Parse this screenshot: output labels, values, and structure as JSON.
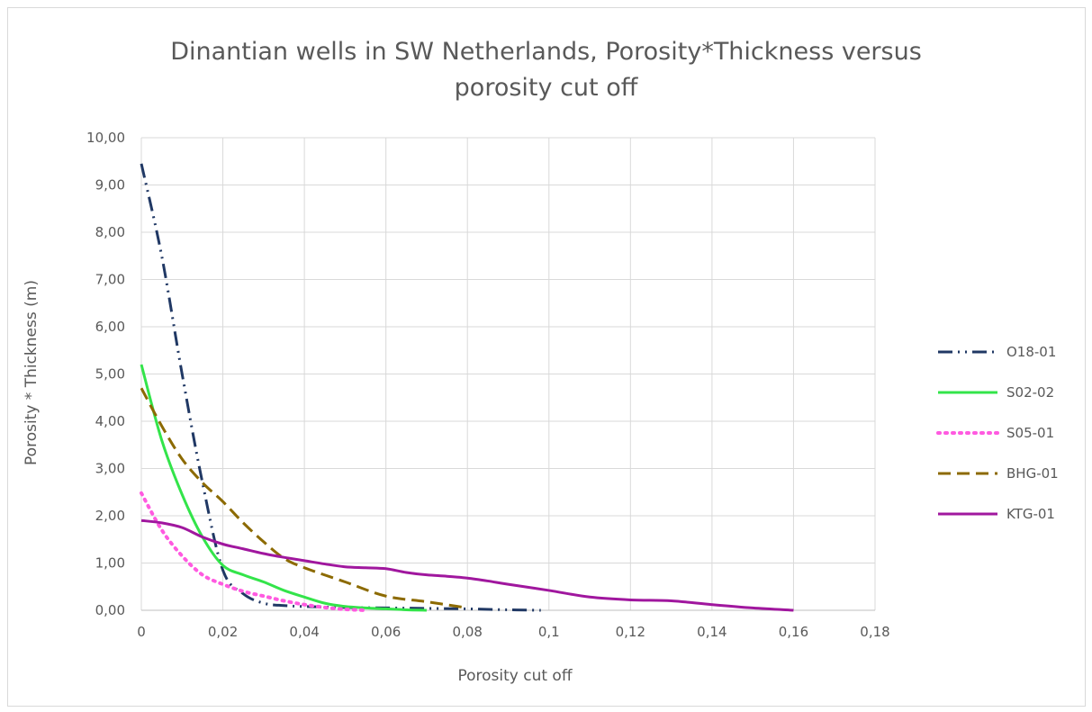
{
  "chart_data": {
    "type": "line",
    "title": [
      "Dinantian wells in SW Netherlands, Porosity*Thickness versus",
      "porosity cut off"
    ],
    "xlabel": "Porosity cut off",
    "ylabel": "Porosity * Thickness (m)",
    "xlim": [
      0,
      0.18
    ],
    "ylim": [
      0,
      10
    ],
    "x_ticks": [
      0,
      0.02,
      0.04,
      0.06,
      0.08,
      0.1,
      0.12,
      0.14,
      0.16,
      0.18
    ],
    "x_tick_labels": [
      "0",
      "0,02",
      "0,04",
      "0,06",
      "0,08",
      "0,1",
      "0,12",
      "0,14",
      "0,16",
      "0,18"
    ],
    "y_ticks": [
      0,
      1,
      2,
      3,
      4,
      5,
      6,
      7,
      8,
      9,
      10
    ],
    "y_tick_labels": [
      "0,00",
      "1,00",
      "2,00",
      "3,00",
      "4,00",
      "5,00",
      "6,00",
      "7,00",
      "8,00",
      "9,00",
      "10,00"
    ],
    "grid": true,
    "legend_position": "right",
    "series": [
      {
        "name": "O18-01",
        "color": "#203864",
        "dash": "dash-dot-dot",
        "x": [
          0,
          0.005,
          0.01,
          0.015,
          0.02,
          0.025,
          0.03,
          0.035,
          0.04,
          0.05,
          0.06,
          0.07,
          0.08,
          0.09,
          0.098
        ],
        "y": [
          9.45,
          7.5,
          5.0,
          2.7,
          0.85,
          0.35,
          0.15,
          0.1,
          0.08,
          0.06,
          0.05,
          0.04,
          0.03,
          0.01,
          0.0
        ]
      },
      {
        "name": "S02-02",
        "color": "#33e44a",
        "dash": "solid",
        "x": [
          0,
          0.005,
          0.01,
          0.015,
          0.02,
          0.025,
          0.03,
          0.035,
          0.04,
          0.045,
          0.05,
          0.055,
          0.06,
          0.065,
          0.07
        ],
        "y": [
          5.2,
          3.6,
          2.45,
          1.55,
          0.95,
          0.75,
          0.6,
          0.42,
          0.28,
          0.15,
          0.08,
          0.05,
          0.03,
          0.01,
          0.0
        ]
      },
      {
        "name": "S05-01",
        "color": "#ff5ae0",
        "dash": "dot",
        "x": [
          0,
          0.005,
          0.01,
          0.015,
          0.02,
          0.025,
          0.03,
          0.035,
          0.04,
          0.045,
          0.05,
          0.055
        ],
        "y": [
          2.48,
          1.7,
          1.15,
          0.75,
          0.55,
          0.4,
          0.3,
          0.2,
          0.12,
          0.06,
          0.02,
          0.0
        ]
      },
      {
        "name": "BHG-01",
        "color": "#8c6a00",
        "dash": "dash",
        "x": [
          0,
          0.005,
          0.01,
          0.015,
          0.02,
          0.025,
          0.03,
          0.035,
          0.04,
          0.05,
          0.06,
          0.07,
          0.08
        ],
        "y": [
          4.7,
          3.9,
          3.2,
          2.7,
          2.3,
          1.85,
          1.45,
          1.1,
          0.9,
          0.6,
          0.3,
          0.18,
          0.05
        ]
      },
      {
        "name": "KTG-01",
        "color": "#a0179e",
        "dash": "solid",
        "x": [
          0,
          0.005,
          0.01,
          0.015,
          0.02,
          0.025,
          0.03,
          0.035,
          0.04,
          0.045,
          0.05,
          0.055,
          0.06,
          0.065,
          0.07,
          0.075,
          0.08,
          0.085,
          0.09,
          0.1,
          0.11,
          0.12,
          0.13,
          0.14,
          0.15,
          0.16
        ],
        "y": [
          1.9,
          1.85,
          1.75,
          1.55,
          1.4,
          1.3,
          1.2,
          1.12,
          1.05,
          0.98,
          0.92,
          0.9,
          0.88,
          0.8,
          0.75,
          0.72,
          0.68,
          0.62,
          0.55,
          0.42,
          0.28,
          0.22,
          0.2,
          0.12,
          0.05,
          0.0
        ]
      }
    ]
  }
}
